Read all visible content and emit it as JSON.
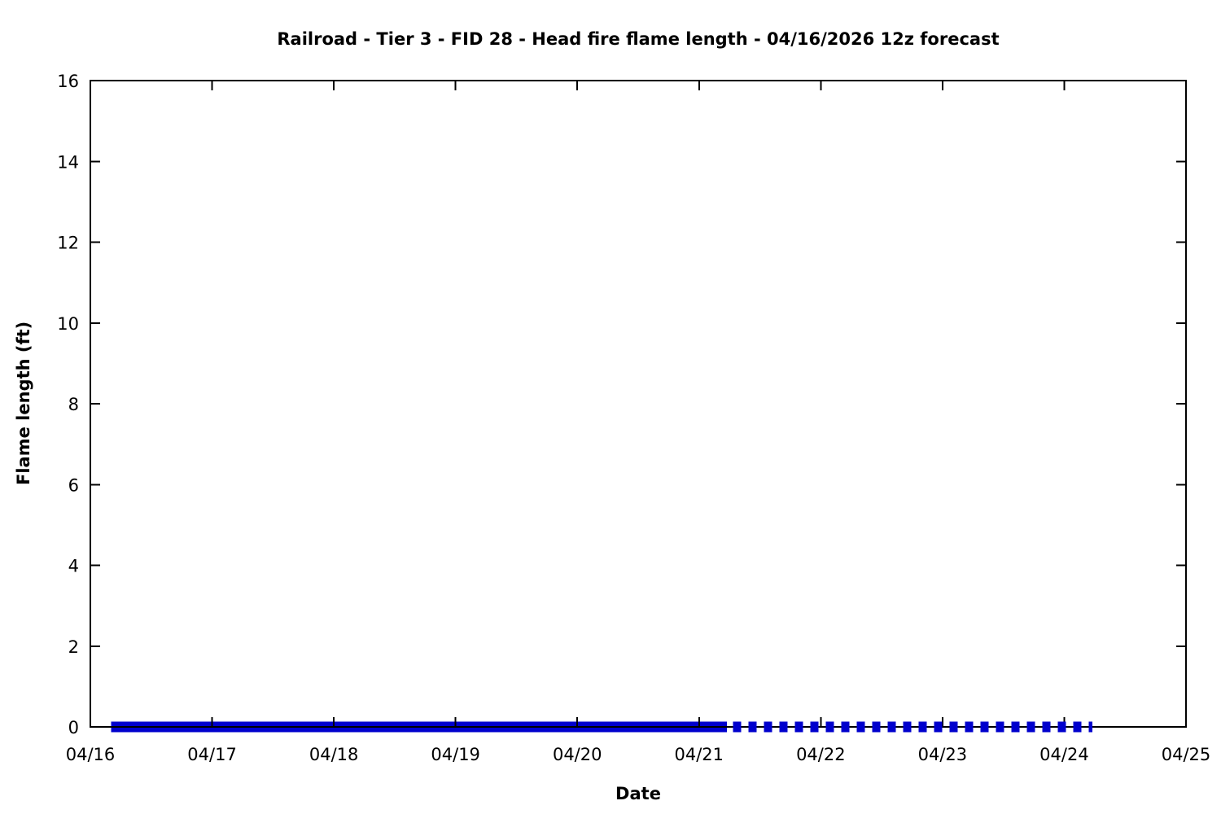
{
  "chart_data": {
    "type": "line",
    "title": "Railroad - Tier 3 - FID 28 - Head fire flame length - 04/16/2026 12z forecast",
    "xlabel": "Date",
    "ylabel": "Flame length (ft)",
    "x_tick_labels": [
      "04/16",
      "04/17",
      "04/18",
      "04/19",
      "04/20",
      "04/21",
      "04/22",
      "04/23",
      "04/24",
      "04/25"
    ],
    "x_range_days": [
      0,
      9
    ],
    "y_ticks": [
      0,
      2,
      4,
      6,
      8,
      10,
      12,
      14,
      16
    ],
    "ylim": [
      0,
      16
    ],
    "grid": false,
    "legend": false,
    "axis_color": "#000000",
    "line_color": "#0000cd",
    "series": [
      {
        "name": "head-fire-flame-length-solid",
        "style": "solid",
        "color": "#0000cd",
        "x_days": [
          0.17,
          5.23
        ],
        "values": [
          0,
          0
        ]
      },
      {
        "name": "head-fire-flame-length-dashed",
        "style": "dashed",
        "color": "#0000cd",
        "x_days": [
          5.28,
          8.23
        ],
        "values": [
          0,
          0
        ]
      }
    ]
  }
}
